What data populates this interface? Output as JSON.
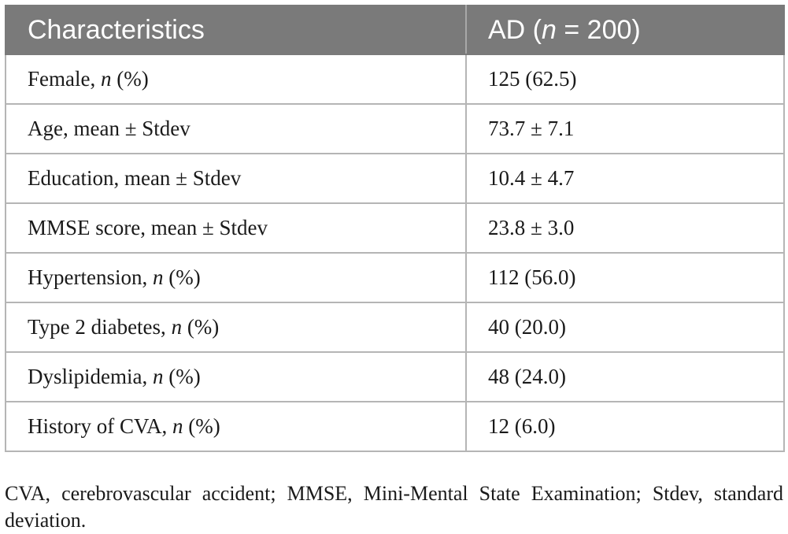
{
  "table": {
    "header": {
      "col1": "Characteristics",
      "col2_prefix": "AD (",
      "col2_italic": "n",
      "col2_suffix": " = 200)"
    },
    "rows": [
      {
        "label_pre": "Female, ",
        "label_italic": "n",
        "label_post": " (%)",
        "value": "125 (62.5)"
      },
      {
        "label_pre": "Age, mean ± Stdev",
        "label_italic": "",
        "label_post": "",
        "value": "73.7 ± 7.1"
      },
      {
        "label_pre": "Education, mean ± Stdev",
        "label_italic": "",
        "label_post": "",
        "value": "10.4 ± 4.7"
      },
      {
        "label_pre": "MMSE score, mean ± Stdev",
        "label_italic": "",
        "label_post": "",
        "value": "23.8 ± 3.0"
      },
      {
        "label_pre": "Hypertension, ",
        "label_italic": "n",
        "label_post": " (%)",
        "value": "112 (56.0)"
      },
      {
        "label_pre": "Type 2 diabetes, ",
        "label_italic": "n",
        "label_post": " (%)",
        "value": "40 (20.0)"
      },
      {
        "label_pre": "Dyslipidemia, ",
        "label_italic": "n",
        "label_post": " (%)",
        "value": "48 (24.0)"
      },
      {
        "label_pre": "History of CVA, ",
        "label_italic": "n",
        "label_post": " (%)",
        "value": "12 (6.0)"
      }
    ]
  },
  "footnote": "CVA, cerebrovascular accident; MMSE, Mini-Mental State Examination; Stdev, standard deviation.",
  "colors": {
    "header_bg": "#7a7a7a",
    "header_text": "#ffffff",
    "grid": "#b5b5b5"
  }
}
